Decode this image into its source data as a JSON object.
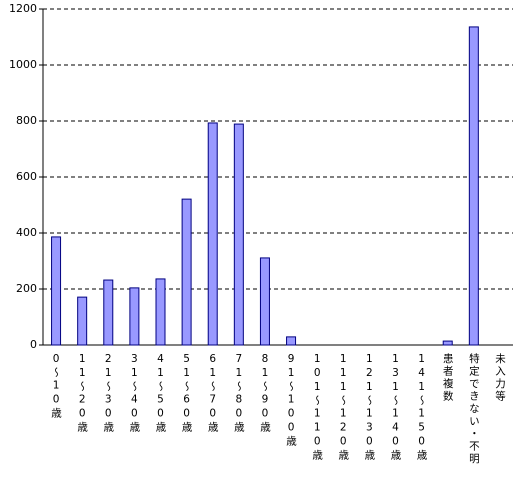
{
  "chart_data": {
    "type": "bar",
    "categories": [
      "0～10歳",
      "11～20歳",
      "21～30歳",
      "31～40歳",
      "41～50歳",
      "51～60歳",
      "61～70歳",
      "71～80歳",
      "81～90歳",
      "91～100歳",
      "101～110歳",
      "111～120歳",
      "121～130歳",
      "131～140歳",
      "141～150歳",
      "患者複数",
      "特定できない・不明",
      "未入力等"
    ],
    "values": [
      386,
      171,
      232,
      204,
      236,
      521,
      793,
      789,
      311,
      29,
      0,
      0,
      0,
      0,
      0,
      14,
      1136,
      0
    ],
    "color": "#9999ff",
    "ylim": [
      0,
      1200
    ],
    "yticks": [
      0,
      200,
      400,
      600,
      800,
      1000,
      1200
    ],
    "grid": true
  }
}
